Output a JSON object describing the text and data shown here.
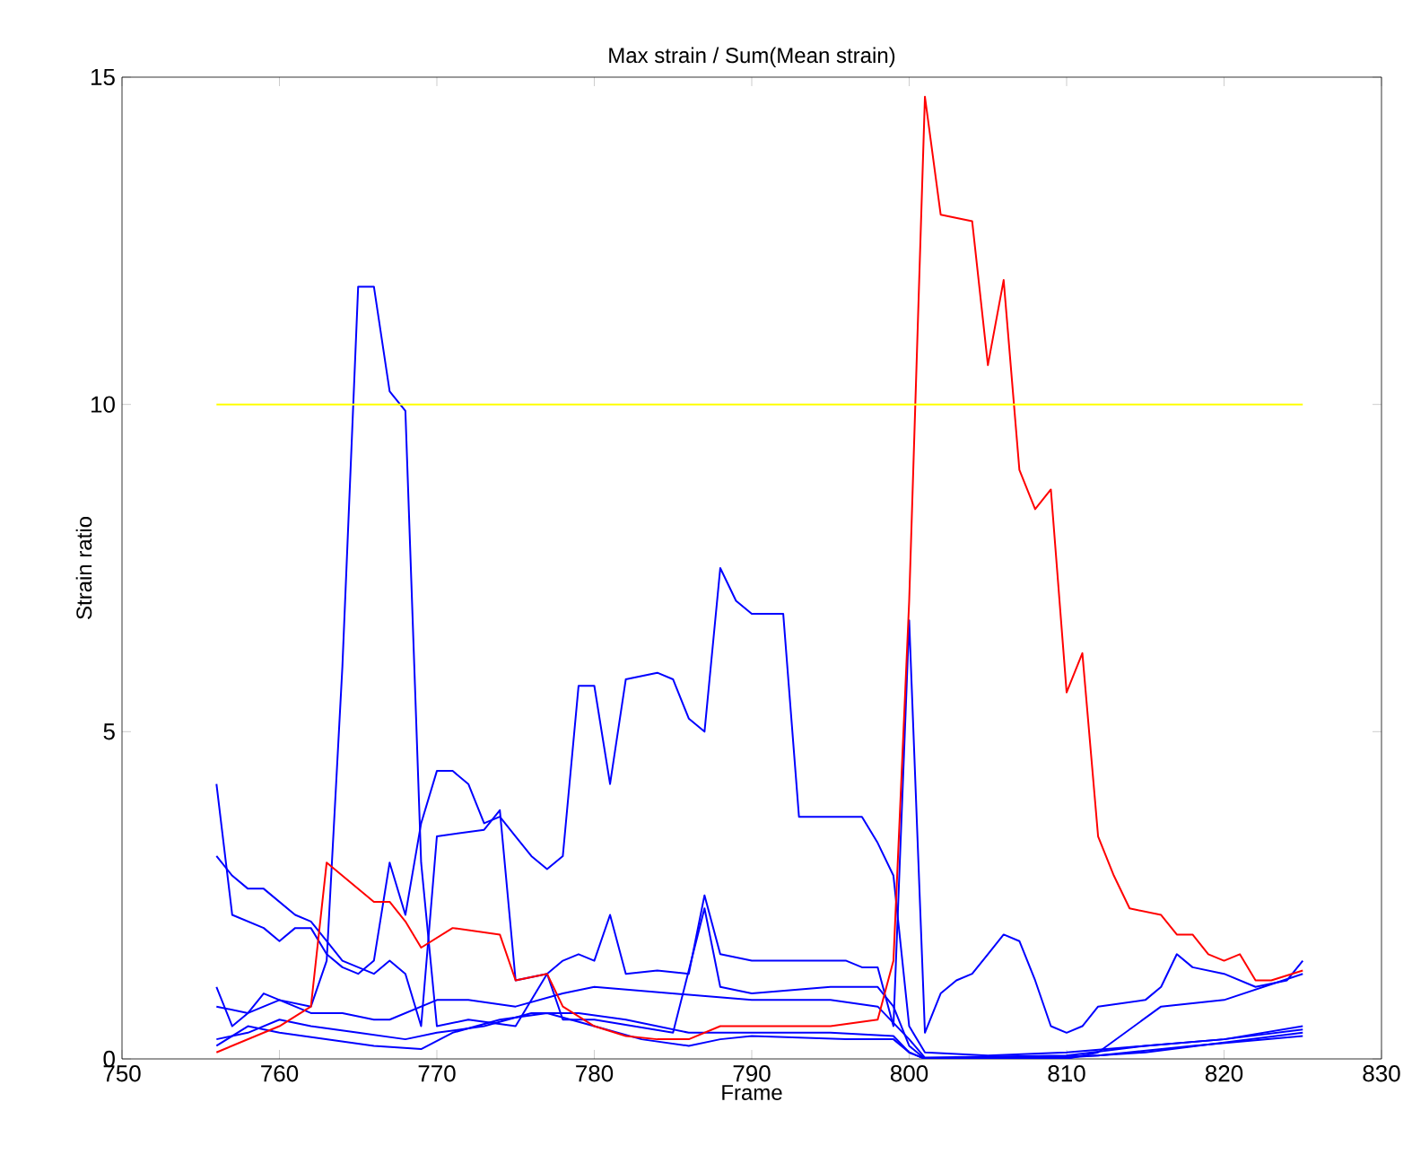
{
  "chart_data": {
    "type": "line",
    "title": "Max strain / Sum(Mean strain)",
    "xlabel": "Frame",
    "ylabel": "Strain ratio",
    "xlim": [
      750,
      830
    ],
    "xticks": [
      750,
      760,
      770,
      780,
      790,
      800,
      810,
      820,
      830
    ],
    "ylim": [
      0,
      15
    ],
    "yticks": [
      0,
      5,
      10,
      15
    ],
    "series": [
      {
        "color": "#0000ff",
        "x": [
          756,
          757,
          758,
          759,
          760,
          761,
          762,
          763,
          764,
          765,
          766,
          767,
          768,
          769,
          770,
          771,
          772,
          773,
          774,
          775,
          776,
          777,
          778,
          779,
          780,
          781,
          782,
          784,
          785,
          786,
          787,
          788,
          789,
          790,
          792,
          793,
          797,
          798,
          799,
          800,
          801,
          805,
          810,
          815,
          820,
          825
        ],
        "values": [
          4.2,
          2.2,
          2.1,
          2.0,
          1.8,
          2.0,
          2.0,
          1.6,
          1.4,
          1.3,
          1.5,
          3.0,
          2.2,
          3.6,
          4.4,
          4.4,
          4.2,
          3.6,
          3.7,
          3.4,
          3.1,
          2.9,
          3.1,
          5.7,
          5.7,
          4.2,
          5.8,
          5.9,
          5.8,
          5.2,
          5.0,
          7.5,
          7.0,
          6.8,
          6.8,
          3.7,
          3.7,
          3.3,
          2.8,
          0.5,
          0.1,
          0.05,
          0.1,
          0.2,
          0.3,
          0.45
        ]
      },
      {
        "color": "#0000ff",
        "x": [
          756,
          757,
          758,
          759,
          760,
          761,
          762,
          763,
          764,
          765,
          766,
          767,
          768,
          769,
          770,
          773,
          774,
          775,
          777,
          778,
          779,
          780,
          781,
          782,
          784,
          786,
          787,
          788,
          790,
          793,
          796,
          797,
          798,
          799,
          800,
          801,
          802,
          803,
          804,
          805,
          806,
          807,
          808,
          809,
          810,
          811,
          812,
          815,
          816,
          817,
          818,
          820,
          822,
          824,
          825
        ],
        "values": [
          3.1,
          2.8,
          2.6,
          2.6,
          2.4,
          2.2,
          2.1,
          1.8,
          1.5,
          1.4,
          1.3,
          1.5,
          1.3,
          0.5,
          3.4,
          3.5,
          3.8,
          1.2,
          1.3,
          1.5,
          1.6,
          1.5,
          2.2,
          1.3,
          1.35,
          1.3,
          2.5,
          1.6,
          1.5,
          1.5,
          1.5,
          1.4,
          1.4,
          0.5,
          6.7,
          0.4,
          1.0,
          1.2,
          1.3,
          1.6,
          1.9,
          1.8,
          1.2,
          0.5,
          0.4,
          0.5,
          0.8,
          0.9,
          1.1,
          1.6,
          1.4,
          1.3,
          1.1,
          1.2,
          1.5
        ]
      },
      {
        "color": "#0000ff",
        "x": [
          756,
          758,
          760,
          762,
          763,
          764,
          765,
          766,
          767,
          768,
          769,
          770,
          772,
          775,
          777,
          778,
          780,
          785,
          787,
          788,
          790,
          795,
          798,
          799,
          800,
          801,
          810,
          812,
          816,
          820,
          825
        ],
        "values": [
          0.8,
          0.7,
          0.9,
          0.8,
          1.5,
          6.0,
          11.8,
          11.8,
          10.2,
          9.9,
          3.0,
          0.5,
          0.6,
          0.5,
          1.3,
          0.6,
          0.6,
          0.4,
          2.3,
          1.1,
          1.0,
          1.1,
          1.1,
          0.8,
          0.2,
          0.0,
          0.0,
          0.1,
          0.8,
          0.9,
          1.3
        ]
      },
      {
        "color": "#0000ff",
        "x": [
          756,
          757,
          758,
          759,
          760,
          762,
          764,
          766,
          767,
          770,
          772,
          775,
          778,
          780,
          785,
          790,
          795,
          798,
          800,
          801,
          810,
          815,
          820,
          825
        ],
        "values": [
          1.1,
          0.5,
          0.7,
          1.0,
          0.9,
          0.7,
          0.7,
          0.6,
          0.6,
          0.9,
          0.9,
          0.8,
          1.0,
          1.1,
          1.0,
          0.9,
          0.9,
          0.8,
          0.3,
          0.02,
          0.05,
          0.2,
          0.3,
          0.5
        ]
      },
      {
        "color": "#0000ff",
        "x": [
          756,
          758,
          760,
          762,
          765,
          768,
          770,
          773,
          776,
          779,
          782,
          786,
          790,
          795,
          799,
          800,
          801,
          810,
          815,
          820,
          825
        ],
        "values": [
          0.3,
          0.4,
          0.6,
          0.5,
          0.4,
          0.3,
          0.4,
          0.5,
          0.7,
          0.7,
          0.6,
          0.4,
          0.4,
          0.4,
          0.35,
          0.1,
          0.0,
          0.02,
          0.1,
          0.25,
          0.4
        ]
      },
      {
        "color": "#0000ff",
        "x": [
          756,
          758,
          760,
          763,
          766,
          769,
          771,
          774,
          777,
          780,
          783,
          786,
          788,
          790,
          796,
          799,
          800,
          801,
          812,
          818,
          825
        ],
        "values": [
          0.2,
          0.5,
          0.4,
          0.3,
          0.2,
          0.15,
          0.4,
          0.6,
          0.7,
          0.5,
          0.3,
          0.2,
          0.3,
          0.35,
          0.3,
          0.3,
          0.1,
          0.0,
          0.05,
          0.2,
          0.35
        ]
      },
      {
        "color": "#ff0000",
        "x": [
          756,
          760,
          762,
          763,
          764,
          766,
          767,
          768,
          769,
          771,
          774,
          775,
          777,
          778,
          780,
          782,
          784,
          786,
          788,
          790,
          795,
          798,
          799,
          800,
          801,
          802,
          804,
          805,
          806,
          807,
          808,
          809,
          810,
          811,
          812,
          813,
          814,
          816,
          817,
          818,
          819,
          820,
          821,
          822,
          823,
          825
        ],
        "values": [
          0.1,
          0.5,
          0.8,
          3.0,
          2.8,
          2.4,
          2.4,
          2.1,
          1.7,
          2.0,
          1.9,
          1.2,
          1.3,
          0.8,
          0.5,
          0.35,
          0.3,
          0.3,
          0.5,
          0.5,
          0.5,
          0.6,
          1.5,
          7.0,
          14.7,
          12.9,
          12.8,
          10.6,
          11.9,
          9.0,
          8.4,
          8.7,
          5.6,
          6.2,
          3.4,
          2.8,
          2.3,
          2.2,
          1.9,
          1.9,
          1.6,
          1.5,
          1.6,
          1.2,
          1.2,
          1.35
        ]
      },
      {
        "color": "#ffff00",
        "x": [
          756,
          825
        ],
        "values": [
          10,
          10
        ]
      }
    ]
  }
}
